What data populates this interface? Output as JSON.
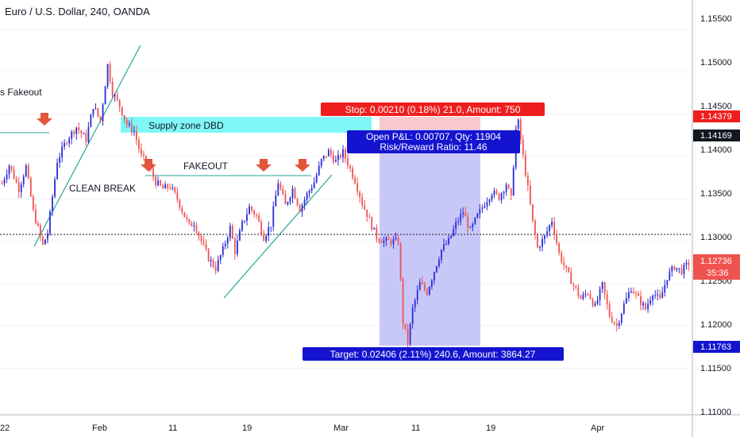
{
  "header": {
    "symbol_title": "Euro / U.S. Dollar, 240, OANDA"
  },
  "colors": {
    "up": "#2b2bd8",
    "down": "#ef5350",
    "supply_zone": "#7ff7f7",
    "trendline": "#26a69a",
    "stop_zone": "#f8c8d0",
    "target_zone": "#c8c8f8",
    "stop_label": "#ef1e1e",
    "target_label": "#1414d0",
    "price_tag_dark": "#131722",
    "arrow": "#e2553a"
  },
  "annotations": {
    "fakeout_left": "s Fakeout",
    "supply_zone": "Supply zone DBD",
    "fakeout": "FAKEOUT",
    "clean_break": "CLEAN BREAK",
    "stop": "Stop: 0.00210 (0.18%) 21.0, Amount: 750",
    "open_pl": "Open P&L: 0.00707, Qty: 11904",
    "risk_reward": "Risk/Reward Ratio: 11.46",
    "target": "Target: 0.02406 (2.11%) 240.6, Amount: 3864.27"
  },
  "price_axis": {
    "ticks": [
      "1.15500",
      "1.15000",
      "1.14500",
      "1.14000",
      "1.13500",
      "1.13000",
      "1.12500",
      "1.12000",
      "1.11500",
      "1.11000"
    ],
    "tags": [
      {
        "label": "1.14379",
        "kind": "stop"
      },
      {
        "label": "1.14169",
        "kind": "entry"
      },
      {
        "label": "1.12736",
        "kind": "last"
      },
      {
        "label": "35:36",
        "kind": "countdown"
      },
      {
        "label": "1.11763",
        "kind": "target"
      }
    ]
  },
  "time_axis": {
    "ticks": [
      "22",
      "Feb",
      "11",
      "19",
      "Mar",
      "11",
      "19",
      "Apr"
    ]
  },
  "chart_data": {
    "type": "candlestick",
    "title": "Euro / U.S. Dollar, 240, OANDA",
    "ylim": [
      1.1095,
      1.1585
    ],
    "y_ticks": [
      1.155,
      1.15,
      1.145,
      1.14,
      1.135,
      1.13,
      1.125,
      1.12,
      1.115,
      1.11
    ],
    "x_tick_labels": [
      "22",
      "Feb",
      "11",
      "19",
      "Mar",
      "11",
      "19",
      "Apr"
    ],
    "path_points": [
      [
        0,
        1.1368
      ],
      [
        3,
        1.139
      ],
      [
        7,
        1.1362
      ],
      [
        10,
        1.1388
      ],
      [
        13,
        1.1335
      ],
      [
        17,
        1.1295
      ],
      [
        19,
        1.131
      ],
      [
        23,
        1.1395
      ],
      [
        27,
        1.142
      ],
      [
        31,
        1.1435
      ],
      [
        35,
        1.142
      ],
      [
        38,
        1.146
      ],
      [
        41,
        1.1442
      ],
      [
        44,
        1.1508
      ],
      [
        46,
        1.1476
      ],
      [
        49,
        1.146
      ],
      [
        52,
        1.1438
      ],
      [
        55,
        1.143
      ],
      [
        58,
        1.14
      ],
      [
        61,
        1.139
      ],
      [
        64,
        1.137
      ],
      [
        67,
        1.1362
      ],
      [
        70,
        1.1365
      ],
      [
        73,
        1.135
      ],
      [
        76,
        1.133
      ],
      [
        78,
        1.1318
      ],
      [
        80,
        1.1322
      ],
      [
        83,
        1.13
      ],
      [
        86,
        1.128
      ],
      [
        89,
        1.1268
      ],
      [
        92,
        1.129
      ],
      [
        95,
        1.1316
      ],
      [
        97,
        1.1288
      ],
      [
        100,
        1.132
      ],
      [
        103,
        1.134
      ],
      [
        106,
        1.133
      ],
      [
        109,
        1.1305
      ],
      [
        112,
        1.132
      ],
      [
        115,
        1.137
      ],
      [
        118,
        1.1342
      ],
      [
        121,
        1.1362
      ],
      [
        124,
        1.1338
      ],
      [
        127,
        1.1355
      ],
      [
        130,
        1.137
      ],
      [
        133,
        1.1395
      ],
      [
        136,
        1.1406
      ],
      [
        139,
        1.1394
      ],
      [
        142,
        1.1405
      ],
      [
        144,
        1.1392
      ],
      [
        147,
        1.1372
      ],
      [
        150,
        1.1345
      ],
      [
        153,
        1.1325
      ],
      [
        156,
        1.1305
      ],
      [
        159,
        1.13
      ],
      [
        162,
        1.13
      ],
      [
        165,
        1.13
      ],
      [
        167,
        1.1205
      ],
      [
        169,
        1.118
      ],
      [
        171,
        1.122
      ],
      [
        174,
        1.125
      ],
      [
        177,
        1.124
      ],
      [
        180,
        1.1265
      ],
      [
        183,
        1.129
      ],
      [
        186,
        1.13
      ],
      [
        189,
        1.132
      ],
      [
        192,
        1.1335
      ],
      [
        195,
        1.1312
      ],
      [
        198,
        1.133
      ],
      [
        201,
        1.1345
      ],
      [
        204,
        1.1358
      ],
      [
        207,
        1.1352
      ],
      [
        210,
        1.1368
      ],
      [
        212,
        1.135
      ],
      [
        214,
        1.1432
      ],
      [
        215,
        1.144
      ],
      [
        217,
        1.14
      ],
      [
        219,
        1.1362
      ],
      [
        221,
        1.1322
      ],
      [
        223,
        1.1292
      ],
      [
        226,
        1.1305
      ],
      [
        229,
        1.1325
      ],
      [
        232,
        1.1285
      ],
      [
        235,
        1.1265
      ],
      [
        238,
        1.1248
      ],
      [
        241,
        1.1232
      ],
      [
        244,
        1.124
      ],
      [
        247,
        1.1222
      ],
      [
        250,
        1.1248
      ],
      [
        253,
        1.1212
      ],
      [
        256,
        1.12
      ],
      [
        259,
        1.1225
      ],
      [
        262,
        1.1245
      ],
      [
        265,
        1.1232
      ],
      [
        268,
        1.122
      ],
      [
        271,
        1.124
      ],
      [
        274,
        1.123
      ],
      [
        277,
        1.1258
      ],
      [
        280,
        1.127
      ],
      [
        283,
        1.1265
      ],
      [
        286,
        1.1274
      ]
    ],
    "last_price": 1.12736,
    "position": {
      "entry": 1.14169,
      "stop": 1.14379,
      "target": 1.11763
    }
  }
}
